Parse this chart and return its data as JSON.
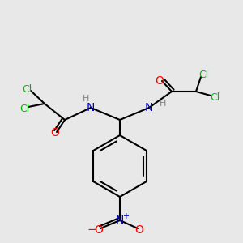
{
  "bg_color": "#e8e8e8",
  "atom_colors": {
    "C": "#000000",
    "H": "#808080",
    "N": "#0000cc",
    "O": "#ff0000",
    "Cl": "#00bb00"
  },
  "figsize": [
    3.0,
    3.0
  ],
  "dpi": 100
}
